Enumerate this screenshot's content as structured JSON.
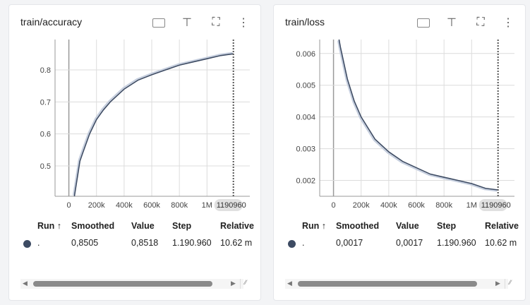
{
  "icons": [
    "fit-domain-icon",
    "pin-icon",
    "fullscreen-icon",
    "more-vert-icon"
  ],
  "colors": {
    "smoothed": "#3d4b63",
    "raw": "#c5cede",
    "grid": "#dcdcdc",
    "cursor": "#555555"
  },
  "cards": [
    {
      "title": "train/accuracy",
      "table": {
        "headers": [
          "Run ↑",
          "Smoothed",
          "Value",
          "Step",
          "Relative"
        ],
        "row": {
          "run": ".",
          "smoothed": "0,8505",
          "value": "0,8518",
          "step": "1.190.960",
          "relative": "10.62 m"
        }
      },
      "cursor_label": "1190960"
    },
    {
      "title": "train/loss",
      "table": {
        "headers": [
          "Run ↑",
          "Smoothed",
          "Value",
          "Step",
          "Relative"
        ],
        "row": {
          "run": ".",
          "smoothed": "0,0017",
          "value": "0,0017",
          "step": "1.190.960",
          "relative": "10.62 m"
        }
      },
      "cursor_label": "1190960"
    }
  ],
  "chart_data": [
    {
      "type": "line",
      "title": "train/accuracy",
      "xlim": [
        -100000,
        1310000
      ],
      "ylim": [
        0.405,
        0.895
      ],
      "grid": true,
      "xticks": [
        0,
        200000,
        400000,
        600000,
        800000,
        1000000
      ],
      "xtick_labels": [
        "0",
        "200k",
        "400k",
        "600k",
        "800k",
        "1M"
      ],
      "yticks": [
        0.5,
        0.6,
        0.7,
        0.8
      ],
      "ytick_labels": [
        "0.5",
        "0.6",
        "0.7",
        "0.8"
      ],
      "cursor_step": 1190960,
      "series": [
        {
          "x": [
            40000,
            60000,
            80000,
            100000,
            150000,
            200000,
            250000,
            300000,
            400000,
            500000,
            600000,
            700000,
            800000,
            900000,
            1000000,
            1100000,
            1190960
          ],
          "y": [
            0.405,
            0.46,
            0.515,
            0.54,
            0.6,
            0.645,
            0.675,
            0.7,
            0.74,
            0.768,
            0.785,
            0.8,
            0.815,
            0.825,
            0.835,
            0.845,
            0.8505
          ]
        }
      ]
    },
    {
      "type": "line",
      "title": "train/loss",
      "xlim": [
        -100000,
        1310000
      ],
      "ylim": [
        0.0015,
        0.00644
      ],
      "grid": true,
      "xticks": [
        0,
        200000,
        400000,
        600000,
        800000,
        1000000
      ],
      "xtick_labels": [
        "0",
        "200k",
        "400k",
        "600k",
        "800k",
        "1M"
      ],
      "yticks": [
        0.002,
        0.003,
        0.004,
        0.005,
        0.006
      ],
      "ytick_labels": [
        "0.002",
        "0.003",
        "0.004",
        "0.005",
        "0.006"
      ],
      "cursor_step": 1190960,
      "series": [
        {
          "x": [
            40000,
            50000,
            100000,
            150000,
            200000,
            300000,
            400000,
            500000,
            600000,
            700000,
            800000,
            900000,
            1000000,
            1100000,
            1190960
          ],
          "y": [
            0.00644,
            0.0062,
            0.0052,
            0.0045,
            0.004,
            0.0033,
            0.0029,
            0.0026,
            0.0024,
            0.0022,
            0.0021,
            0.002,
            0.0019,
            0.00175,
            0.0017
          ]
        }
      ]
    }
  ]
}
